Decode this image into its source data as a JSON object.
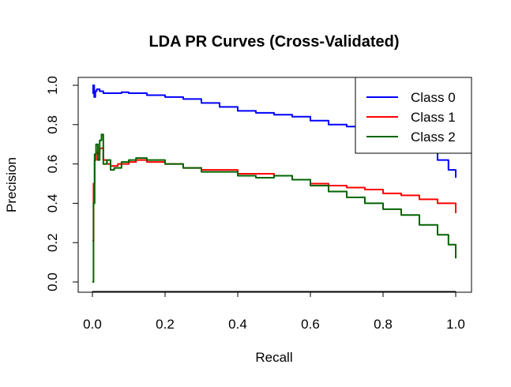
{
  "chart_data": {
    "type": "line",
    "title": "LDA PR Curves (Cross-Validated)",
    "xlabel": "Recall",
    "ylabel": "Precision",
    "xlim": [
      0.0,
      1.0
    ],
    "ylim": [
      0.0,
      1.0
    ],
    "xticks": [
      "0.0",
      "0.2",
      "0.4",
      "0.6",
      "0.8",
      "1.0"
    ],
    "yticks": [
      "0.0",
      "0.2",
      "0.4",
      "0.6",
      "0.8",
      "1.0"
    ],
    "grid": false,
    "legend_position": "top-right",
    "series": [
      {
        "name": "Class 0",
        "color": "#0000ff",
        "x": [
          0.0,
          0.002,
          0.005,
          0.008,
          0.012,
          0.02,
          0.03,
          0.05,
          0.08,
          0.1,
          0.15,
          0.2,
          0.25,
          0.3,
          0.35,
          0.4,
          0.45,
          0.5,
          0.55,
          0.6,
          0.65,
          0.7,
          0.75,
          0.8,
          0.85,
          0.9,
          0.95,
          0.98,
          1.0
        ],
        "y": [
          0.96,
          1.0,
          0.94,
          0.97,
          0.98,
          0.97,
          0.96,
          0.96,
          0.965,
          0.96,
          0.95,
          0.94,
          0.93,
          0.91,
          0.89,
          0.87,
          0.86,
          0.85,
          0.84,
          0.82,
          0.8,
          0.79,
          0.77,
          0.76,
          0.73,
          0.68,
          0.62,
          0.57,
          0.53
        ]
      },
      {
        "name": "Class 1",
        "color": "#ff0000",
        "x": [
          0.0,
          0.003,
          0.006,
          0.01,
          0.015,
          0.02,
          0.03,
          0.04,
          0.05,
          0.07,
          0.1,
          0.12,
          0.15,
          0.2,
          0.25,
          0.3,
          0.35,
          0.4,
          0.45,
          0.5,
          0.55,
          0.6,
          0.65,
          0.7,
          0.75,
          0.8,
          0.85,
          0.9,
          0.95,
          1.0
        ],
        "y": [
          0.21,
          0.5,
          0.62,
          0.66,
          0.65,
          0.68,
          0.62,
          0.6,
          0.59,
          0.6,
          0.61,
          0.62,
          0.61,
          0.6,
          0.58,
          0.57,
          0.57,
          0.55,
          0.55,
          0.54,
          0.52,
          0.5,
          0.49,
          0.48,
          0.47,
          0.45,
          0.44,
          0.42,
          0.4,
          0.35
        ]
      },
      {
        "name": "Class 2",
        "color": "#006400",
        "x": [
          0.0,
          0.003,
          0.006,
          0.01,
          0.015,
          0.02,
          0.025,
          0.03,
          0.04,
          0.05,
          0.06,
          0.08,
          0.1,
          0.12,
          0.15,
          0.2,
          0.25,
          0.3,
          0.35,
          0.4,
          0.45,
          0.5,
          0.55,
          0.6,
          0.65,
          0.7,
          0.75,
          0.8,
          0.85,
          0.9,
          0.95,
          0.98,
          1.0
        ],
        "y": [
          0.0,
          0.4,
          0.65,
          0.7,
          0.62,
          0.72,
          0.75,
          0.6,
          0.62,
          0.57,
          0.58,
          0.61,
          0.62,
          0.63,
          0.62,
          0.6,
          0.58,
          0.56,
          0.56,
          0.54,
          0.53,
          0.54,
          0.52,
          0.49,
          0.46,
          0.43,
          0.4,
          0.37,
          0.34,
          0.29,
          0.24,
          0.19,
          0.12
        ]
      }
    ]
  }
}
